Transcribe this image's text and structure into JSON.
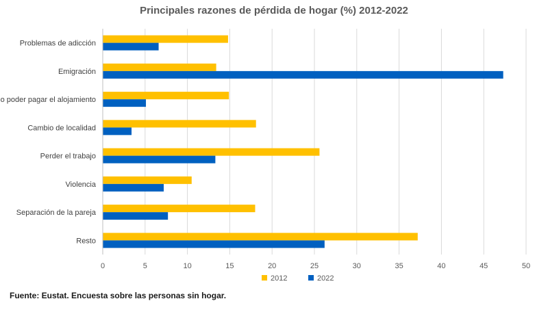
{
  "chart_data": {
    "type": "bar",
    "orientation": "horizontal",
    "title": "Principales razones de pérdida de hogar (%) 2012-2022",
    "categories": [
      "Problemas de adicción",
      "Emigración",
      "No poder pagar el alojamiento",
      "Cambio de localidad",
      "Perder el trabajo",
      "Violencia",
      "Separación de la pareja",
      "Resto"
    ],
    "series": [
      {
        "name": "2012",
        "color": "#FFC000",
        "values": [
          14.8,
          13.4,
          14.9,
          18.1,
          25.6,
          10.5,
          18.0,
          37.2
        ]
      },
      {
        "name": "2022",
        "color": "#0060C0",
        "values": [
          6.6,
          47.3,
          5.1,
          3.4,
          13.3,
          7.2,
          7.7,
          26.2
        ]
      }
    ],
    "xlim": [
      0,
      50
    ],
    "xticks": [
      0,
      5,
      10,
      15,
      20,
      25,
      30,
      35,
      40,
      45,
      50
    ],
    "grid": true,
    "legend": "bottom",
    "xlabel": "",
    "ylabel": ""
  },
  "source_note": "Fuente: Eustat. Encuesta sobre las personas sin hogar."
}
